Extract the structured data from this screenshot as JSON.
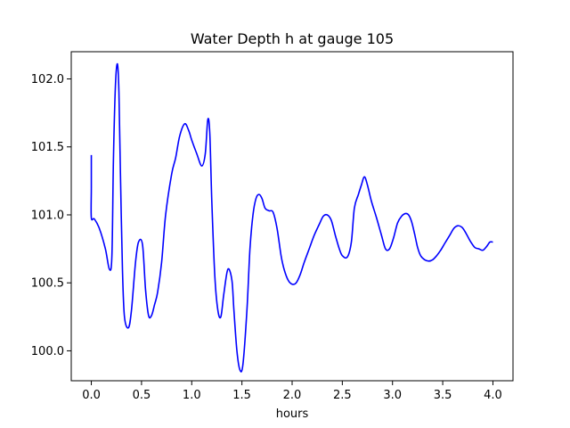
{
  "chart_data": {
    "type": "line",
    "title": "Water Depth h at gauge 105",
    "xlabel": "hours",
    "ylabel": "",
    "xlim": [
      -0.2,
      4.2
    ],
    "ylim": [
      99.78,
      102.2
    ],
    "x_ticks": [
      0.0,
      0.5,
      1.0,
      1.5,
      2.0,
      2.5,
      3.0,
      3.5,
      4.0
    ],
    "x_tick_labels": [
      "0.0",
      "0.5",
      "1.0",
      "1.5",
      "2.0",
      "2.5",
      "3.0",
      "3.5",
      "4.0"
    ],
    "y_ticks": [
      100.0,
      100.5,
      101.0,
      101.5,
      102.0
    ],
    "y_tick_labels": [
      "100.0",
      "100.5",
      "101.0",
      "101.5",
      "102.0"
    ],
    "grid": false,
    "legend": false,
    "series": [
      {
        "color": "#0000ff",
        "x": [
          0.0,
          0.0,
          0.0,
          0.03,
          0.08,
          0.14,
          0.18,
          0.205,
          0.22,
          0.24,
          0.26,
          0.275,
          0.29,
          0.31,
          0.33,
          0.37,
          0.4,
          0.44,
          0.47,
          0.51,
          0.54,
          0.57,
          0.6,
          0.63,
          0.66,
          0.7,
          0.74,
          0.8,
          0.84,
          0.88,
          0.93,
          0.97,
          1.0,
          1.05,
          1.1,
          1.135,
          1.16,
          1.18,
          1.2,
          1.23,
          1.26,
          1.29,
          1.32,
          1.36,
          1.4,
          1.42,
          1.45,
          1.48,
          1.51,
          1.55,
          1.58,
          1.61,
          1.64,
          1.67,
          1.7,
          1.73,
          1.77,
          1.81,
          1.85,
          1.89,
          1.92,
          1.96,
          2.0,
          2.04,
          2.08,
          2.12,
          2.17,
          2.22,
          2.27,
          2.31,
          2.35,
          2.39,
          2.43,
          2.47,
          2.5,
          2.55,
          2.59,
          2.62,
          2.66,
          2.69,
          2.72,
          2.75,
          2.79,
          2.84,
          2.89,
          2.93,
          2.97,
          3.01,
          3.05,
          3.09,
          3.13,
          3.16,
          3.19,
          3.22,
          3.25,
          3.28,
          3.32,
          3.36,
          3.4,
          3.44,
          3.48,
          3.52,
          3.57,
          3.61,
          3.65,
          3.69,
          3.72,
          3.75,
          3.78,
          3.82,
          3.86,
          3.9,
          3.94,
          3.97,
          4.0
        ],
        "y": [
          101.44,
          101.2,
          100.98,
          100.97,
          100.9,
          100.75,
          100.6,
          100.7,
          101.4,
          101.95,
          102.11,
          101.9,
          101.3,
          100.6,
          100.25,
          100.17,
          100.3,
          100.65,
          100.8,
          100.78,
          100.45,
          100.26,
          100.26,
          100.34,
          100.43,
          100.65,
          101.0,
          101.3,
          101.42,
          101.58,
          101.67,
          101.62,
          101.55,
          101.45,
          101.36,
          101.45,
          101.7,
          101.6,
          101.1,
          100.55,
          100.3,
          100.25,
          100.42,
          100.6,
          100.52,
          100.3,
          100.0,
          99.86,
          99.9,
          100.3,
          100.75,
          101.0,
          101.12,
          101.15,
          101.12,
          101.05,
          101.03,
          101.02,
          100.9,
          100.7,
          100.6,
          100.52,
          100.49,
          100.5,
          100.56,
          100.65,
          100.75,
          100.85,
          100.93,
          100.99,
          101.0,
          100.96,
          100.85,
          100.75,
          100.7,
          100.69,
          100.8,
          101.05,
          101.15,
          101.22,
          101.28,
          101.22,
          101.1,
          100.98,
          100.85,
          100.75,
          100.75,
          100.83,
          100.94,
          100.99,
          101.01,
          101.0,
          100.95,
          100.86,
          100.76,
          100.7,
          100.67,
          100.66,
          100.67,
          100.7,
          100.74,
          100.79,
          100.85,
          100.9,
          100.92,
          100.91,
          100.88,
          100.84,
          100.8,
          100.76,
          100.75,
          100.74,
          100.77,
          100.8,
          100.8
        ]
      }
    ]
  }
}
